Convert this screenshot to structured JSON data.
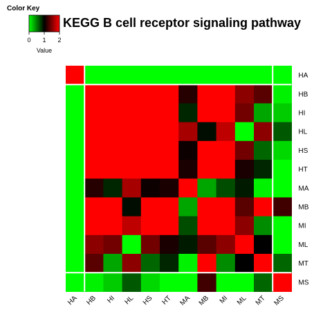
{
  "chart_data": {
    "type": "heatmap",
    "title": "KEGG B cell receptor signaling pathway",
    "rows": [
      "HA",
      "HB",
      "HI",
      "HL",
      "HS",
      "HT",
      "MA",
      "MB",
      "MI",
      "ML",
      "MT",
      "MS"
    ],
    "columns": [
      "HA",
      "HB",
      "HI",
      "HL",
      "HS",
      "HT",
      "MA",
      "MB",
      "MI",
      "ML",
      "MT",
      "MS"
    ],
    "values": [
      [
        2.0,
        0.0,
        0.0,
        0.0,
        0.0,
        0.0,
        0.0,
        0.0,
        0.0,
        0.0,
        0.0,
        0.0
      ],
      [
        0.0,
        2.0,
        2.0,
        2.0,
        2.0,
        2.0,
        1.15,
        2.0,
        2.0,
        1.55,
        1.35,
        0.05
      ],
      [
        0.0,
        2.0,
        2.0,
        2.0,
        2.0,
        2.0,
        0.85,
        2.0,
        2.0,
        1.45,
        0.35,
        0.2
      ],
      [
        0.0,
        2.0,
        2.0,
        2.0,
        2.0,
        2.0,
        1.65,
        0.95,
        1.75,
        0.0,
        1.55,
        0.65
      ],
      [
        0.0,
        2.0,
        2.0,
        2.0,
        2.0,
        2.0,
        1.05,
        2.0,
        2.0,
        1.45,
        0.6,
        0.15
      ],
      [
        0.0,
        2.0,
        2.0,
        2.0,
        2.0,
        2.0,
        1.1,
        2.0,
        2.0,
        1.1,
        0.85,
        0.0
      ],
      [
        0.0,
        1.15,
        0.85,
        1.65,
        1.05,
        1.1,
        2.0,
        0.35,
        0.7,
        0.9,
        0.05,
        0.0
      ],
      [
        0.0,
        2.0,
        2.0,
        0.95,
        2.0,
        2.0,
        0.35,
        2.0,
        2.0,
        1.35,
        2.0,
        1.25
      ],
      [
        0.0,
        2.0,
        2.0,
        1.75,
        2.0,
        2.0,
        0.7,
        2.0,
        2.0,
        1.55,
        0.45,
        0.0
      ],
      [
        0.0,
        1.55,
        1.45,
        0.0,
        1.45,
        1.1,
        0.9,
        1.35,
        1.55,
        2.0,
        1.0,
        0.0
      ],
      [
        0.0,
        1.35,
        0.35,
        1.55,
        0.6,
        0.85,
        0.05,
        2.0,
        0.45,
        1.0,
        2.0,
        0.6
      ],
      [
        0.0,
        0.05,
        0.2,
        0.65,
        0.15,
        0.0,
        0.0,
        1.25,
        0.0,
        0.0,
        0.6,
        2.0
      ]
    ],
    "color_key": {
      "title": "Color Key",
      "label": "Value",
      "ticks": [
        0,
        1,
        2
      ],
      "colors": [
        "#00ff00",
        "#000000",
        "#ff0000"
      ],
      "range": [
        0,
        2
      ]
    },
    "legend_placement": "top-left"
  }
}
